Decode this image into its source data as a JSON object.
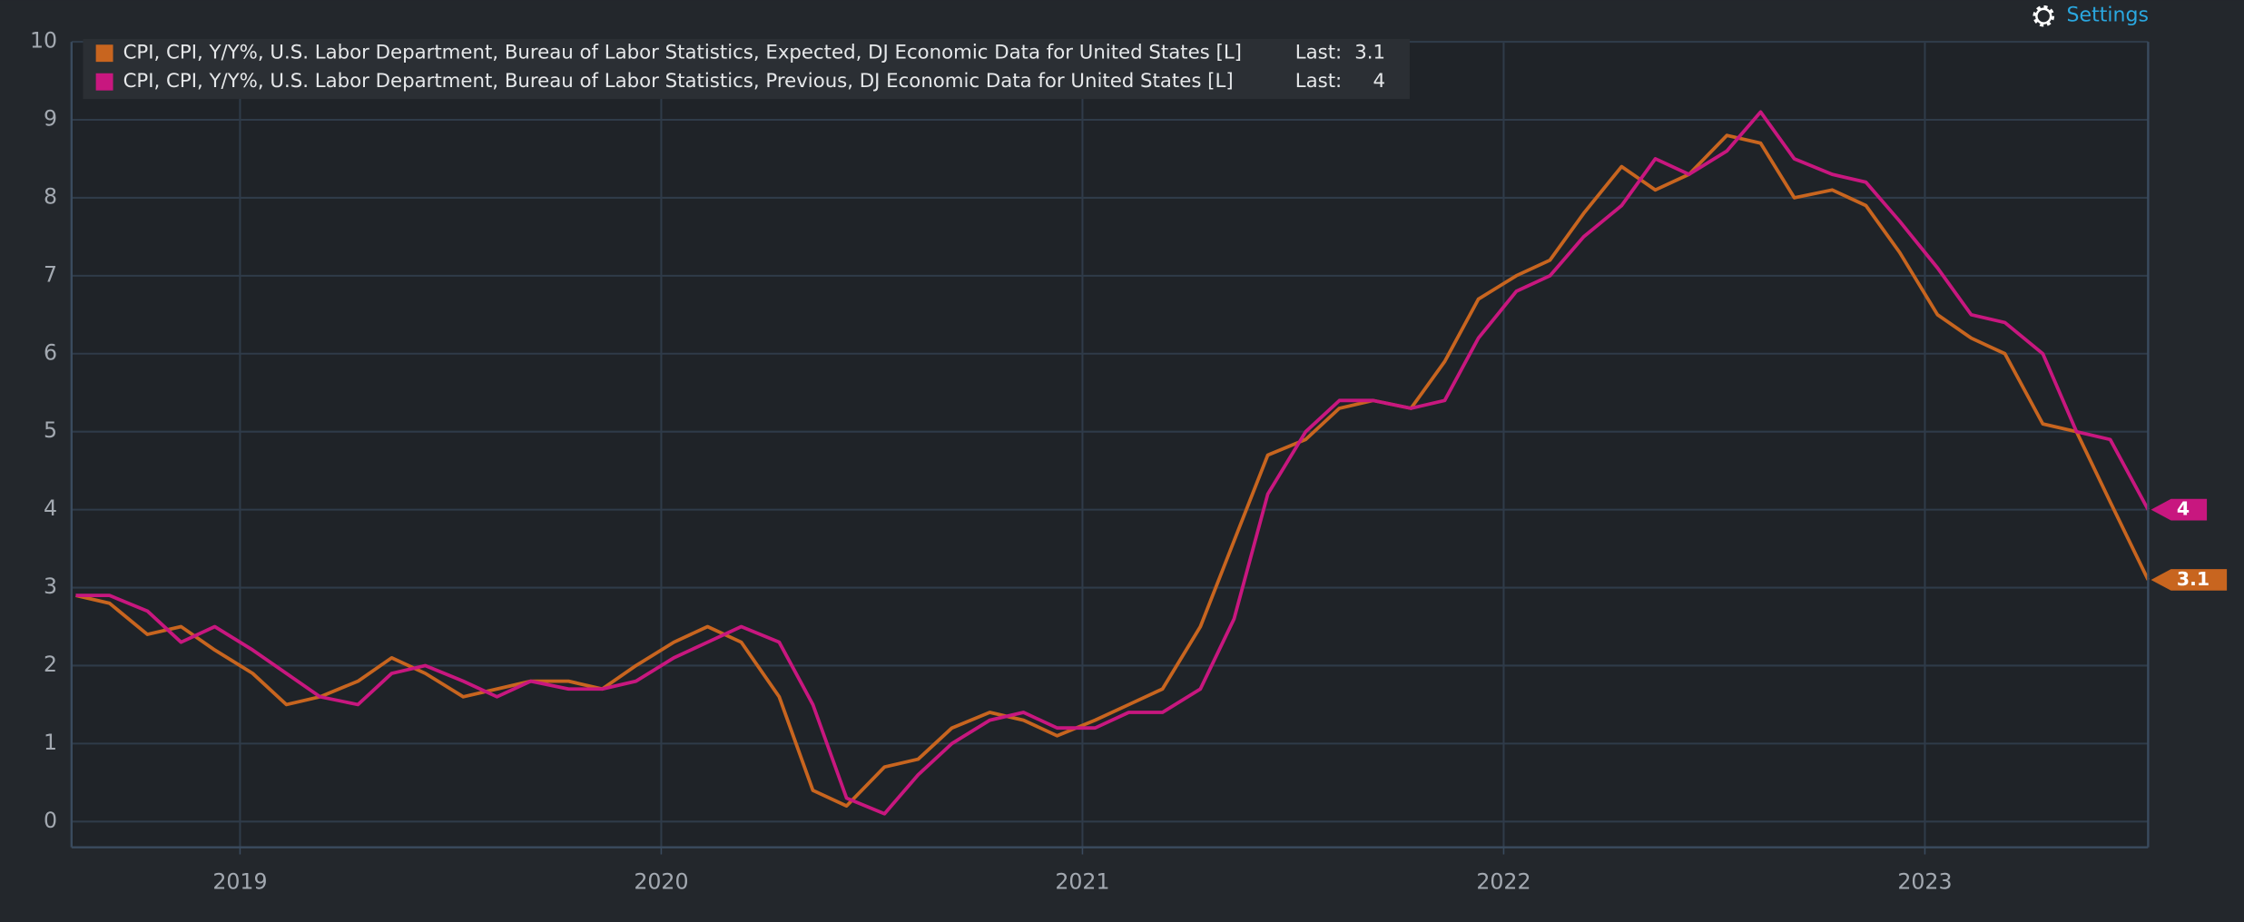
{
  "settings_label": "Settings",
  "chart_data": {
    "type": "line",
    "legend_last_label": "Last:",
    "x": [
      2018.61,
      2018.69,
      2018.78,
      2018.86,
      2018.94,
      2019.03,
      2019.11,
      2019.19,
      2019.28,
      2019.36,
      2019.44,
      2019.53,
      2019.61,
      2019.69,
      2019.78,
      2019.86,
      2019.94,
      2020.03,
      2020.11,
      2020.19,
      2020.28,
      2020.36,
      2020.44,
      2020.53,
      2020.61,
      2020.69,
      2020.78,
      2020.86,
      2020.94,
      2021.03,
      2021.11,
      2021.19,
      2021.28,
      2021.36,
      2021.44,
      2021.53,
      2021.61,
      2021.69,
      2021.78,
      2021.86,
      2021.94,
      2022.03,
      2022.11,
      2022.19,
      2022.28,
      2022.36,
      2022.44,
      2022.53,
      2022.61,
      2022.69,
      2022.78,
      2022.86,
      2022.94,
      2023.03,
      2023.11,
      2023.19,
      2023.28,
      2023.36,
      2023.44,
      2023.53
    ],
    "series": [
      {
        "name": "CPI, CPI, Y/Y%, U.S. Labor Department, Bureau of Labor Statistics, Expected, DJ Economic Data for United States [L]",
        "color": "#c8651f",
        "values": [
          2.9,
          2.8,
          2.4,
          2.5,
          2.2,
          1.9,
          1.5,
          1.6,
          1.8,
          2.1,
          1.9,
          1.6,
          1.7,
          1.8,
          1.8,
          1.7,
          2.0,
          2.3,
          2.5,
          2.3,
          1.6,
          0.4,
          0.2,
          0.7,
          0.8,
          1.2,
          1.4,
          1.3,
          1.1,
          1.3,
          1.5,
          1.7,
          2.5,
          3.6,
          4.7,
          4.9,
          5.3,
          5.4,
          5.3,
          5.9,
          6.7,
          7.0,
          7.2,
          7.8,
          8.4,
          8.1,
          8.3,
          8.8,
          8.7,
          8.0,
          8.1,
          7.9,
          7.3,
          6.5,
          6.2,
          6.0,
          5.1,
          5.0,
          4.1,
          3.1
        ]
      },
      {
        "name": "CPI, CPI, Y/Y%, U.S. Labor Department, Bureau of Labor Statistics, Previous, DJ Economic Data for United States [L]",
        "color": "#c8177f",
        "values": [
          2.9,
          2.9,
          2.7,
          2.3,
          2.5,
          2.2,
          1.9,
          1.6,
          1.5,
          1.9,
          2.0,
          1.8,
          1.6,
          1.8,
          1.7,
          1.7,
          1.8,
          2.1,
          2.3,
          2.5,
          2.3,
          1.5,
          0.3,
          0.1,
          0.6,
          1.0,
          1.3,
          1.4,
          1.2,
          1.2,
          1.4,
          1.4,
          1.7,
          2.6,
          4.2,
          5.0,
          5.4,
          5.4,
          5.3,
          5.4,
          6.2,
          6.8,
          7.0,
          7.5,
          7.9,
          8.5,
          8.3,
          8.6,
          9.1,
          8.5,
          8.3,
          8.2,
          7.7,
          7.1,
          6.5,
          6.4,
          6.0,
          5.0,
          4.9,
          4.0
        ]
      }
    ],
    "xlim": [
      2018.6,
      2023.53
    ],
    "xticks": [
      2019,
      2020,
      2021,
      2022,
      2023
    ],
    "ylim": [
      -0.33,
      10
    ],
    "yticks": [
      0,
      1,
      2,
      3,
      4,
      5,
      6,
      7,
      8,
      9,
      10
    ],
    "grid": true
  }
}
